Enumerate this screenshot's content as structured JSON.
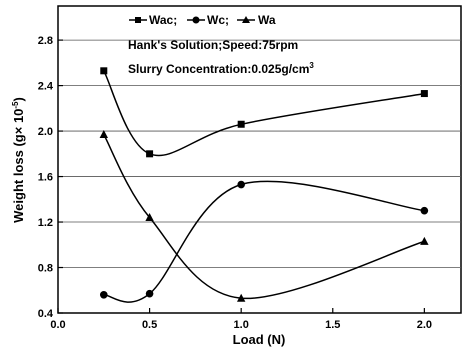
{
  "chart_data": {
    "type": "line",
    "xlabel": "Load (N)",
    "ylabel": "Weight loss (g× 10",
    "ylabel_superscript": "-5",
    "ylabel_suffix": ")",
    "xlim": [
      0.0,
      2.2
    ],
    "ylim": [
      0.4,
      3.1
    ],
    "x_ticks": [
      0.0,
      0.5,
      1.0,
      1.5,
      2.0
    ],
    "x_tick_labels": [
      "0.0",
      "0.5",
      "1.0",
      "1.5",
      "2.0"
    ],
    "y_ticks": [
      0.4,
      0.8,
      1.2,
      1.6,
      2.0,
      2.4,
      2.8
    ],
    "y_tick_labels": [
      "0.4",
      "0.8",
      "1.2",
      "1.6",
      "2.0",
      "2.4",
      "2.8"
    ],
    "grid": "horizontal",
    "legend_placement": "top",
    "series": [
      {
        "name": "Wac;",
        "marker": "square",
        "x": [
          0.25,
          0.5,
          1.0,
          2.0
        ],
        "values": [
          2.53,
          1.8,
          2.06,
          2.33
        ]
      },
      {
        "name": "Wc;",
        "marker": "circle",
        "x": [
          0.25,
          0.5,
          1.0,
          2.0
        ],
        "values": [
          0.56,
          0.57,
          1.53,
          1.3
        ]
      },
      {
        "name": "Wa",
        "marker": "triangle",
        "x": [
          0.25,
          0.5,
          1.0,
          2.0
        ],
        "values": [
          1.97,
          1.24,
          0.53,
          1.03
        ]
      }
    ],
    "annotations": {
      "line1": "Hank's Solution;Speed:75rpm",
      "line2": "Slurry Concentration:0.025g/cm",
      "line2_superscript": "3"
    }
  }
}
